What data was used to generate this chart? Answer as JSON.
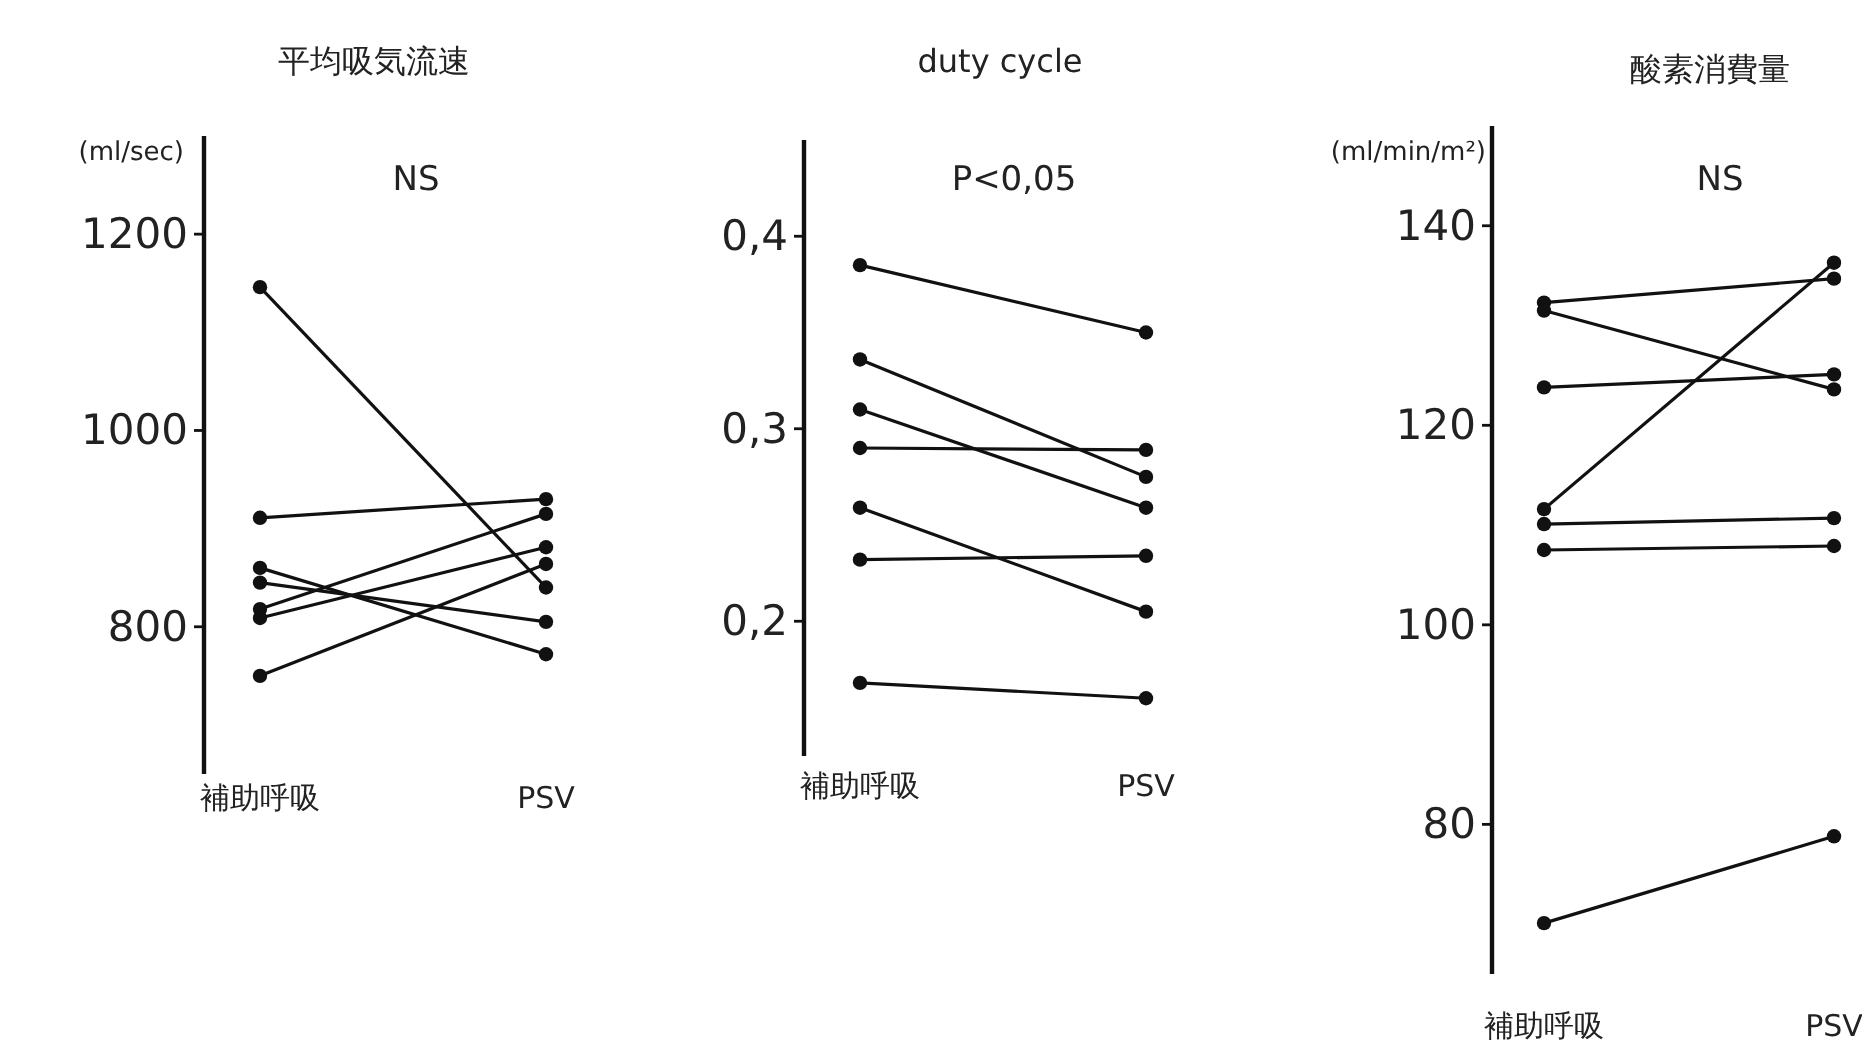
{
  "chart_data": [
    {
      "type": "line",
      "title": "平均吸気流速",
      "ylabel": "(ml/sec)",
      "annotations": [
        "NS"
      ],
      "categories": [
        "補助呼吸",
        "PSV"
      ],
      "marker": "circle",
      "ylim": [
        650,
        1300
      ],
      "yticks": [
        800,
        1000,
        1200
      ],
      "series": [
        {
          "color": "#111111",
          "values": [
            1146,
            840
          ]
        },
        {
          "color": "#111111",
          "values": [
            911,
            930
          ]
        },
        {
          "color": "#111111",
          "values": [
            860,
            772
          ]
        },
        {
          "color": "#111111",
          "values": [
            845,
            805
          ]
        },
        {
          "color": "#111111",
          "values": [
            818,
            915
          ]
        },
        {
          "color": "#111111",
          "values": [
            809,
            881
          ]
        },
        {
          "color": "#111111",
          "values": [
            750,
            864
          ]
        }
      ]
    },
    {
      "type": "line",
      "title": "duty cycle",
      "annotations": [
        "P<0,05"
      ],
      "categories": [
        "補助呼吸",
        "PSV"
      ],
      "marker": "circle",
      "ylim": [
        0.13,
        0.45
      ],
      "yticks": [
        {
          "value": 0.2,
          "label": "0,2"
        },
        {
          "value": 0.3,
          "label": "0,3"
        },
        {
          "value": 0.4,
          "label": "0,4"
        }
      ],
      "series": [
        {
          "color": "#111111",
          "values": [
            0.385,
            0.35
          ]
        },
        {
          "color": "#111111",
          "values": [
            0.336,
            0.275
          ]
        },
        {
          "color": "#111111",
          "values": [
            0.31,
            0.259
          ]
        },
        {
          "color": "#111111",
          "values": [
            0.29,
            0.289
          ]
        },
        {
          "color": "#111111",
          "values": [
            0.259,
            0.205
          ]
        },
        {
          "color": "#111111",
          "values": [
            0.232,
            0.234
          ]
        },
        {
          "color": "#111111",
          "values": [
            0.168,
            0.16
          ]
        }
      ]
    },
    {
      "type": "line",
      "title": "酸素消費量",
      "ylabel": "(ml/min/m²)",
      "annotations": [
        "NS"
      ],
      "categories": [
        "補助呼吸",
        "PSV"
      ],
      "marker": "circle",
      "ylim": [
        65,
        150
      ],
      "yticks": [
        80,
        100,
        120,
        140
      ],
      "series": [
        {
          "color": "#111111",
          "values": [
            132.3,
            134.7
          ]
        },
        {
          "color": "#111111",
          "values": [
            131.5,
            123.6
          ]
        },
        {
          "color": "#111111",
          "values": [
            123.8,
            125.1
          ]
        },
        {
          "color": "#111111",
          "values": [
            111.6,
            136.3
          ]
        },
        {
          "color": "#111111",
          "values": [
            110.1,
            110.7
          ]
        },
        {
          "color": "#111111",
          "values": [
            107.5,
            107.9
          ]
        },
        {
          "color": "#111111",
          "values": [
            70.1,
            78.8
          ]
        }
      ]
    }
  ]
}
